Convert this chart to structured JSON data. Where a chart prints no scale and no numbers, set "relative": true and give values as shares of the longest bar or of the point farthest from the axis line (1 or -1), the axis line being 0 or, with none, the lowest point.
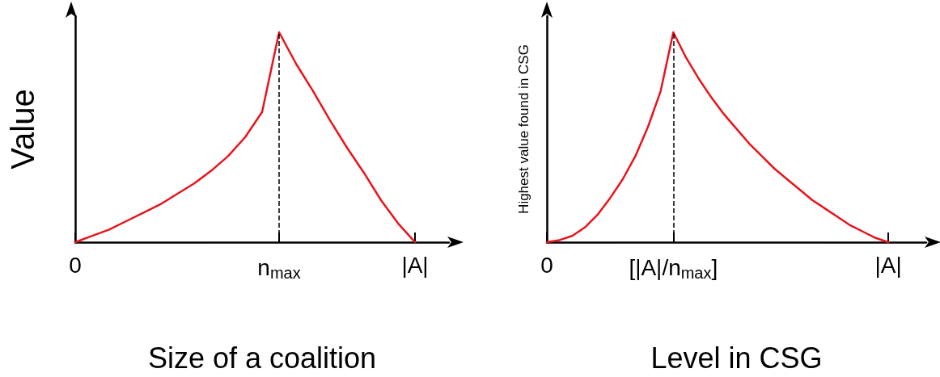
{
  "chart_data": [
    {
      "type": "line",
      "relative": true,
      "xlabel": "Size of a coalition",
      "ylabel": "Value",
      "categories": [
        "0",
        null,
        null,
        null,
        null,
        null,
        null,
        null,
        null,
        null,
        null,
        null,
        "n$_{max}$",
        null,
        null,
        null,
        null,
        null,
        null,
        null,
        "|A|",
        null,
        null
      ],
      "series": [
        {
          "color": "#e8141c",
          "values": [
            0,
            0.03,
            0.06,
            0.1,
            0.14,
            0.18,
            0.23,
            0.28,
            0.34,
            0.41,
            0.5,
            0.62,
            1,
            0.85,
            0.72,
            0.58,
            0.45,
            0.33,
            0.2,
            0.09,
            0,
            null,
            null
          ]
        }
      ],
      "ref_lines": [
        {
          "axis": "x",
          "value": "n$_{max}$",
          "color": "#000000",
          "line_style": "dashed"
        }
      ],
      "grid": false,
      "marker": "none",
      "line_style": "solid"
    },
    {
      "type": "line",
      "relative": true,
      "xlabel": "Level in CSG",
      "ylabel": "Highest value found in CSG",
      "categories": [
        "0",
        null,
        null,
        null,
        null,
        null,
        null,
        null,
        null,
        null,
        "[|A|/n$_{max}$]",
        null,
        null,
        null,
        null,
        null,
        null,
        null,
        null,
        null,
        null,
        null,
        null,
        null,
        null,
        null,
        null,
        "|A|",
        null,
        null,
        null
      ],
      "series": [
        {
          "color": "#e8141c",
          "values": [
            0,
            0.01,
            0.03,
            0.07,
            0.13,
            0.21,
            0.3,
            0.41,
            0.55,
            0.72,
            1,
            0.88,
            0.78,
            0.69,
            0.61,
            0.54,
            0.47,
            0.41,
            0.35,
            0.3,
            0.25,
            0.2,
            0.16,
            0.12,
            0.08,
            0.05,
            0.02,
            0,
            null,
            null,
            null
          ]
        }
      ],
      "ref_lines": [
        {
          "axis": "x",
          "value": "[|A|/n$_{max}$]",
          "color": "#000000",
          "line_style": "dashed"
        }
      ],
      "grid": false,
      "marker": "none",
      "line_style": "solid"
    }
  ]
}
